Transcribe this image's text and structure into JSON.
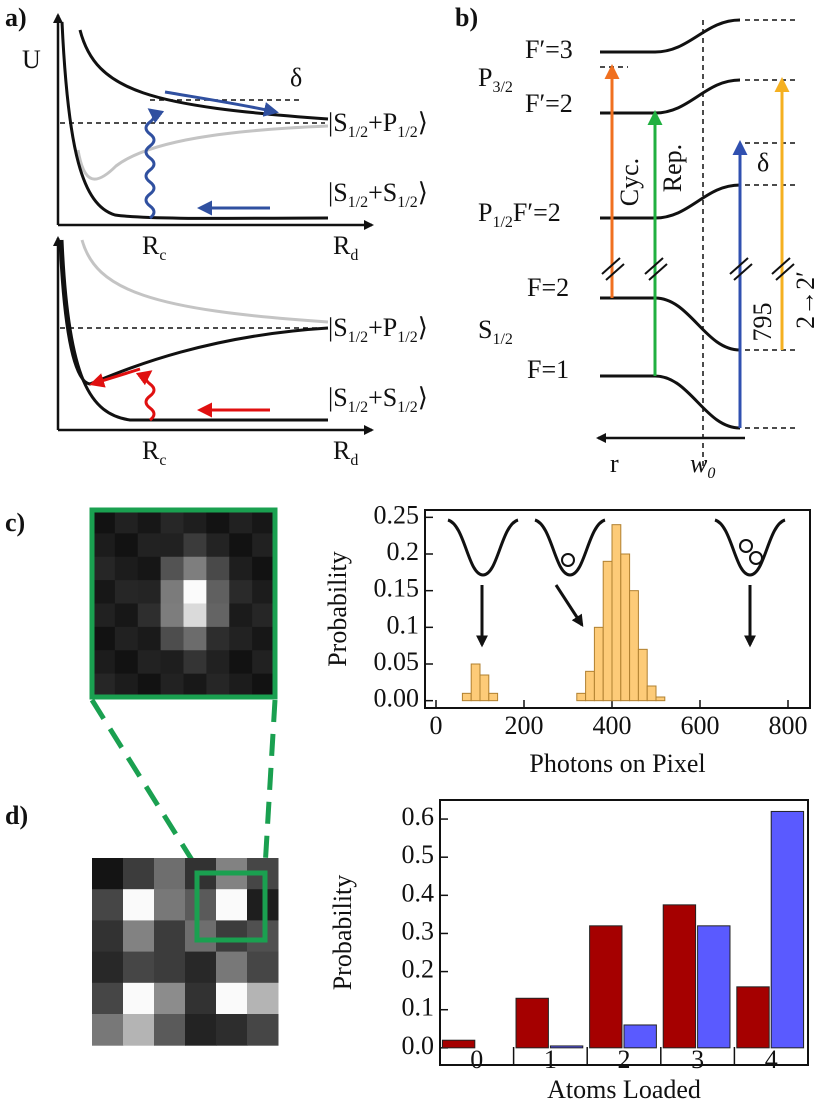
{
  "panel_labels": [
    "a)",
    "b)",
    "c)",
    "d)"
  ],
  "diagram_a": {
    "y_axis": "U",
    "delta": "δ",
    "top": {
      "upper_state": [
        "|S",
        "1/2",
        "+P",
        "1/2",
        "⟩"
      ],
      "lower_state": [
        "|S",
        "1/2",
        "+S",
        "1/2",
        "⟩"
      ],
      "rc": [
        "R",
        "c"
      ],
      "rd": [
        "R",
        "d"
      ]
    },
    "bottom": {
      "upper_state": [
        "|S",
        "1/2",
        "+P",
        "1/2",
        "⟩"
      ],
      "lower_state": [
        "|S",
        "1/2",
        "+S",
        "1/2",
        "⟩"
      ],
      "rc": [
        "R",
        "c"
      ],
      "rd": [
        "R",
        "d"
      ]
    }
  },
  "diagram_b": {
    "f3": "F′=3",
    "p32": [
      "P",
      "3/2"
    ],
    "f2p": "F′=2",
    "p12": [
      "P",
      "1/2",
      "F′=2"
    ],
    "f2": "F=2",
    "s12": [
      "S",
      "1/2"
    ],
    "f1": "F=1",
    "cyc": "Cyc.",
    "rep": "Rep.",
    "delta": "δ",
    "nm": "795",
    "trans": "2→2′",
    "r": "r",
    "w0": [
      "w",
      "0"
    ]
  },
  "chart_data": [
    {
      "type": "histogram",
      "x_label": "Photons on Pixel",
      "y_label": "Probability",
      "bins": [
        60,
        80,
        100,
        120,
        140,
        160,
        180,
        200,
        220,
        240,
        260,
        280,
        300,
        320,
        340,
        360,
        380,
        400,
        420,
        440,
        460,
        480,
        500,
        520
      ],
      "values": [
        0.01,
        0.05,
        0.035,
        0.01,
        0,
        0,
        0,
        0,
        0,
        0,
        0,
        0,
        0,
        0.01,
        0.04,
        0.1,
        0.19,
        0.24,
        0.2,
        0.15,
        0.07,
        0.02,
        0.005
      ],
      "color": "#fdcb78",
      "xlim": [
        -25,
        850
      ],
      "ylim": [
        -0.01,
        0.26
      ],
      "xticks": [
        0,
        200,
        400,
        600,
        800
      ],
      "yticks": [
        {
          "value": 0,
          "label": "0.00"
        },
        {
          "value": 0.05,
          "label": "0.05"
        },
        0.1,
        0.15,
        0.2,
        0.25
      ]
    },
    {
      "type": "bar",
      "x_label": "Atoms Loaded",
      "y_label": "Probability",
      "categories": [
        "0",
        "1",
        "2",
        "3",
        "4"
      ],
      "series": [
        {
          "color": "#a50000",
          "values": [
            0.02,
            0.13,
            0.32,
            0.375,
            0.16
          ]
        },
        {
          "color": "#5a5aff",
          "values": [
            0,
            0.005,
            0.06,
            0.32,
            0.62
          ]
        }
      ],
      "ylim": [
        -0.045,
        0.65
      ],
      "yticks": [
        {
          "value": 0,
          "label": "0.0"
        },
        0.1,
        0.2,
        0.3,
        0.4,
        0.5,
        0.6
      ]
    }
  ]
}
